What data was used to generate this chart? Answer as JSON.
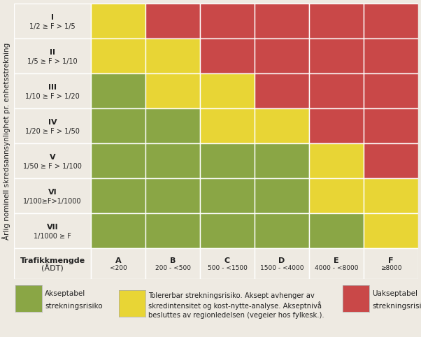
{
  "rows": [
    {
      "label_line1": "I",
      "label_line2": "1/2 ≥ F > 1/5",
      "colors": [
        "Y",
        "R",
        "R",
        "R",
        "R",
        "R"
      ]
    },
    {
      "label_line1": "II",
      "label_line2": "1/5 ≥ F > 1/10",
      "colors": [
        "Y",
        "Y",
        "R",
        "R",
        "R",
        "R"
      ]
    },
    {
      "label_line1": "III",
      "label_line2": "1/10 ≥ F > 1/20",
      "colors": [
        "G",
        "Y",
        "Y",
        "R",
        "R",
        "R"
      ]
    },
    {
      "label_line1": "IV",
      "label_line2": "1/20 ≥ F > 1/50",
      "colors": [
        "G",
        "G",
        "Y",
        "Y",
        "R",
        "R"
      ]
    },
    {
      "label_line1": "V",
      "label_line2": "1/50 ≥ F > 1/100",
      "colors": [
        "G",
        "G",
        "G",
        "G",
        "Y",
        "R"
      ]
    },
    {
      "label_line1": "VI",
      "label_line2": "1/100≥F>1/1000",
      "colors": [
        "G",
        "G",
        "G",
        "G",
        "Y",
        "Y"
      ]
    },
    {
      "label_line1": "VII",
      "label_line2": "1/1000 ≥ F",
      "colors": [
        "G",
        "G",
        "G",
        "G",
        "G",
        "Y"
      ]
    }
  ],
  "col_labels_line1": [
    "A",
    "B",
    "C",
    "D",
    "E",
    "F"
  ],
  "col_labels_line2": [
    "<200",
    "200 - <500",
    "500 - <1500",
    "1500 - <4000",
    "4000 - <8000",
    "≥8000"
  ],
  "color_map": {
    "G": "#8aA645",
    "Y": "#E8D535",
    "R": "#C94848"
  },
  "y_axis_label": "Årlig nominell skredsannsynlighet pr. enhetsstrekning",
  "x_axis_label_line1": "Trafikkmengde",
  "x_axis_label_line2": "(ÅDT)",
  "legend": [
    {
      "color": "#8aA645",
      "text_line1": "Akseptabel",
      "text_line2": "strekningsrisiko"
    },
    {
      "color": "#E8D535",
      "text_line1": "Tolererbar strekningsrisiko. Aksept avhenger av",
      "text_line2": "skredintensitet og kost-nytte-analyse. Akseptnivå",
      "text_line3": "besluttes av regionledelsen (vegeier hos fylkesk.)."
    },
    {
      "color": "#C94848",
      "text_line1": "Uakseptabel",
      "text_line2": "strekningsrisiko"
    }
  ],
  "background_color": "#eeeae2",
  "grid_color": "#ffffff",
  "font_size_row_label": 7.5,
  "font_size_col_label": 7.5
}
